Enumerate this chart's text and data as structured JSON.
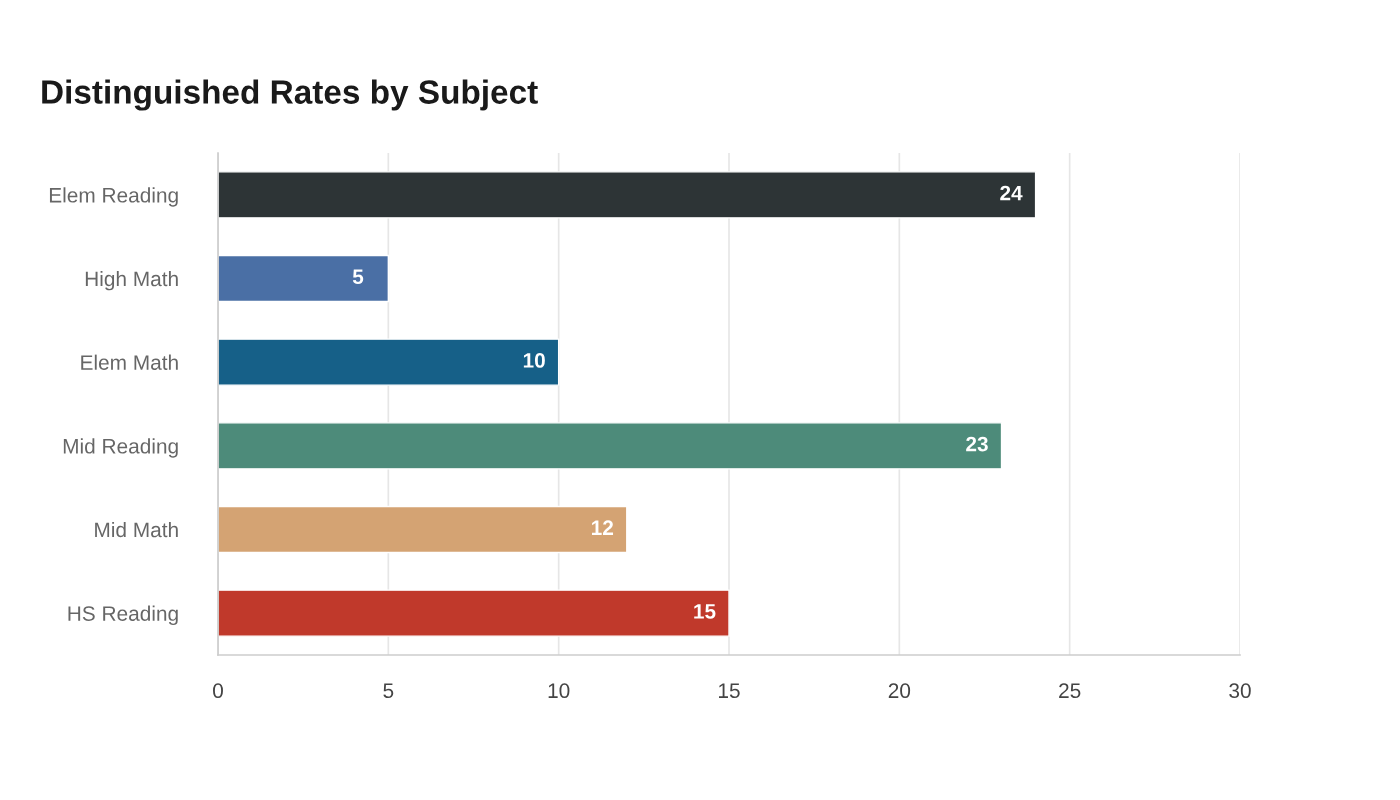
{
  "chart_data": {
    "type": "bar",
    "orientation": "horizontal",
    "title": "Distinguished Rates by Subject",
    "categories": [
      "Elem Reading",
      "High Math",
      "Elem Math",
      "Mid Reading",
      "Mid Math",
      "HS Reading"
    ],
    "values": [
      24,
      5,
      10,
      23,
      12,
      15
    ],
    "colors": [
      "#2d3436",
      "#4a6fa5",
      "#166088",
      "#4d8b7a",
      "#d4a373",
      "#c0392b"
    ],
    "xlim": [
      0,
      30
    ],
    "xticks": [
      0,
      5,
      10,
      15,
      20,
      25,
      30
    ],
    "grid": "x",
    "data_labels": true
  }
}
